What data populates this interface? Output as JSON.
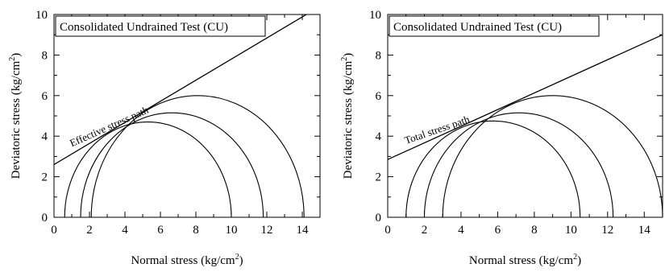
{
  "chart_data": [
    {
      "type": "line",
      "title": "Consolidated Undrained Test (CU)",
      "xlabel": {
        "main": "Normal stress (kg/cm",
        "sup": "2",
        "close": ")"
      },
      "ylabel": {
        "main": "Deviatoric stress (kg/cm",
        "sup": "2",
        "close": ")"
      },
      "xlim": [
        0,
        15
      ],
      "ylim": [
        0,
        10
      ],
      "xticks": [
        0,
        2,
        4,
        6,
        8,
        10,
        12,
        14
      ],
      "yticks": [
        0,
        2,
        4,
        6,
        8,
        10
      ],
      "grid": false,
      "circles": [
        {
          "sigma3": 0.6,
          "sigma1": 10.0
        },
        {
          "sigma3": 1.5,
          "sigma1": 11.8
        },
        {
          "sigma3": 2.1,
          "sigma1": 14.1
        }
      ],
      "envelope": {
        "intercept": 2.6,
        "slope": 0.52
      },
      "annotation": "Effective stress path"
    },
    {
      "type": "line",
      "title": "Consolidated Undrained Test (CU)",
      "xlabel": {
        "main": "Normal stress (kg/cm",
        "sup": "2",
        "close": ")"
      },
      "ylabel": {
        "main": "Deviatoric stress (kg/cm",
        "sup": "2",
        "close": ")"
      },
      "xlim": [
        0,
        15
      ],
      "ylim": [
        0,
        10
      ],
      "xticks": [
        0,
        2,
        4,
        6,
        8,
        10,
        12,
        14
      ],
      "yticks": [
        0,
        2,
        4,
        6,
        8,
        10
      ],
      "grid": false,
      "circles": [
        {
          "sigma3": 1.0,
          "sigma1": 10.5
        },
        {
          "sigma3": 2.0,
          "sigma1": 12.3
        },
        {
          "sigma3": 3.0,
          "sigma1": 15.0
        }
      ],
      "envelope": {
        "intercept": 2.85,
        "slope": 0.41
      },
      "annotation": "Total stress path"
    }
  ]
}
